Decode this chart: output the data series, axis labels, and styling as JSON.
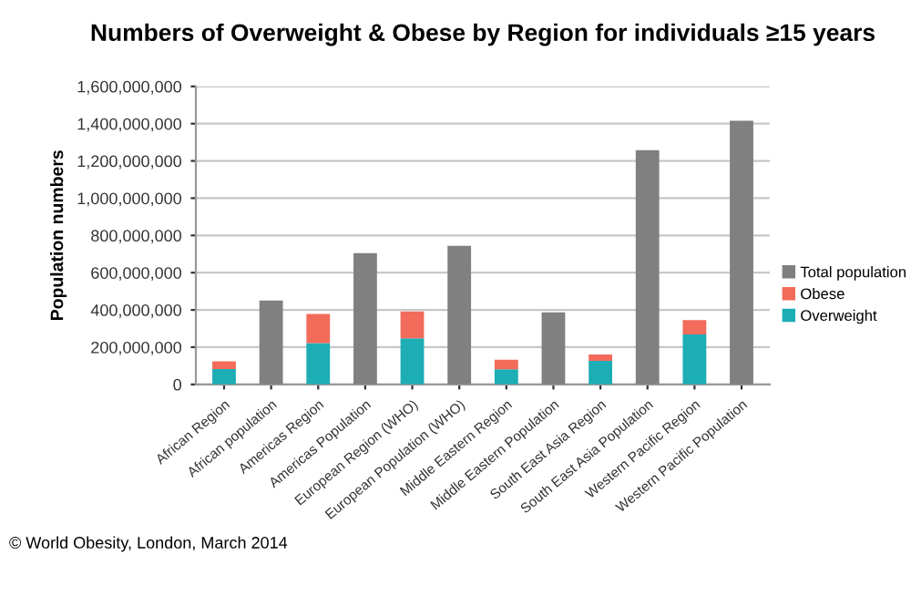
{
  "chart_data": {
    "type": "bar",
    "title": "Numbers of Overweight & Obese by Region for individuals ≥15 years",
    "ylabel": "Population numbers",
    "categories": [
      "African Region",
      "African population",
      "Americas Region",
      "Americas Population",
      "European Region (WHO)",
      "European Population (WHO)",
      "Middle Eastern Region",
      "Middle Eastern Population",
      "South East Asia Region",
      "South East Asia Population",
      "Western Pacific Region",
      "Western Pacific Population"
    ],
    "stacked": true,
    "series": [
      {
        "name": "Overweight",
        "color": "#1cadb5",
        "values": [
          82000000,
          null,
          222000000,
          null,
          248000000,
          null,
          81000000,
          null,
          126000000,
          null,
          268000000,
          null
        ]
      },
      {
        "name": "Obese",
        "color": "#f26b5b",
        "values": [
          42000000,
          null,
          156000000,
          null,
          144000000,
          null,
          51000000,
          null,
          35000000,
          null,
          77000000,
          null
        ]
      },
      {
        "name": "Total population",
        "color": "#808080",
        "values": [
          null,
          450000000,
          null,
          705000000,
          null,
          744000000,
          null,
          387000000,
          null,
          1258000000,
          null,
          1416000000
        ]
      }
    ],
    "ylim": [
      0,
      1600000000
    ],
    "yticks": [
      0,
      {
        "value": 200000000,
        "label": "200,000,000"
      },
      {
        "value": 400000000,
        "label": "400,000,000"
      },
      {
        "value": 600000000,
        "label": "600,000,000"
      },
      {
        "value": 800000000,
        "label": "800,000,000"
      },
      {
        "value": 1000000000,
        "label": "1,000,000,000"
      },
      {
        "value": 1200000000,
        "label": "1,200,000,000"
      },
      {
        "value": 1400000000,
        "label": "1,400,000,000"
      },
      {
        "value": 1600000000,
        "label": "1,600,000,000"
      }
    ],
    "grid": "y",
    "legend": "right",
    "annotations": [
      "© World Obesity, London, March 2014"
    ]
  }
}
